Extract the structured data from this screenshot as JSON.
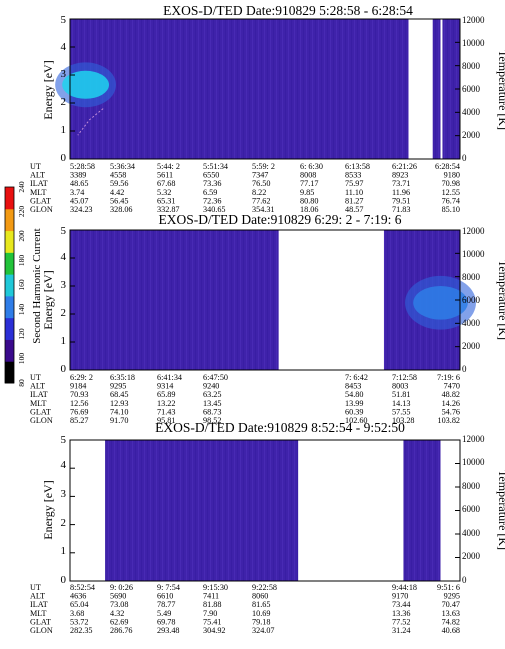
{
  "colorbar": {
    "label": "Second Harmonic Current",
    "ticks": [
      "80",
      "100",
      "120",
      "140",
      "160",
      "180",
      "200",
      "220",
      "240"
    ],
    "colors": [
      "#000000",
      "#3a0a8c",
      "#2b2fd6",
      "#2f7de8",
      "#20c8d8",
      "#22c33a",
      "#e8e81e",
      "#f29a14",
      "#e81010"
    ]
  },
  "chart_data": [
    {
      "type": "heatmap",
      "title": "EXOS-D/TED   Date:910829  5:28:58 - 6:28:54",
      "ylabel": "Energy [eV]",
      "ylabel_right": "Temperature [K]",
      "ylim": [
        0,
        5
      ],
      "yticks": [
        "0",
        "1",
        "2",
        "3",
        "4",
        "5"
      ],
      "ylim_right": [
        0,
        12000
      ],
      "yticks_right": [
        "0",
        "2000",
        "4000",
        "6000",
        "8000",
        "10000",
        "12000"
      ],
      "background_color": "#3f22aa",
      "gaps": [
        [
          0.868,
          0.93
        ],
        [
          0.95,
          0.955
        ]
      ],
      "hot_spots": [
        {
          "x": 0.04,
          "y": 0.47,
          "rx": 0.06,
          "ry": 0.1,
          "color": "#1ed3ee"
        }
      ],
      "arc": {
        "x": [
          0.085,
          0.05,
          0.02
        ],
        "y": [
          0.36,
          0.28,
          0.17
        ]
      },
      "ephemeris": [
        {
          "label": "UT",
          "values": [
            "5:28:58",
            "5:36:34",
            "5:44: 2",
            "5:51:34",
            "5:59: 2",
            "6: 6:30",
            "6:13:58",
            "6:21:26",
            "6:28:54"
          ]
        },
        {
          "label": "ALT",
          "values": [
            "3389",
            "4558",
            "5611",
            "6550",
            "7347",
            "8008",
            "8533",
            "8923",
            "9180"
          ]
        },
        {
          "label": "ILAT",
          "values": [
            "48.65",
            "59.56",
            "67.68",
            "73.36",
            "76.50",
            "77.17",
            "75.97",
            "73.71",
            "70.98"
          ]
        },
        {
          "label": "MLT",
          "values": [
            "3.74",
            "4.42",
            "5.32",
            "6.59",
            "8.22",
            "9.85",
            "11.10",
            "11.96",
            "12.55"
          ]
        },
        {
          "label": "GLAT",
          "values": [
            "45.07",
            "56.45",
            "65.31",
            "72.36",
            "77.62",
            "80.80",
            "81.27",
            "79.51",
            "76.74"
          ]
        },
        {
          "label": "GLON",
          "values": [
            "324.23",
            "328.06",
            "332.87",
            "340.65",
            "354.31",
            "18.06",
            "48.57",
            "71.83",
            "85.10"
          ]
        }
      ]
    },
    {
      "type": "heatmap",
      "title": "EXOS-D/TED   Date:910829  6:29: 2 - 7:19: 6",
      "ylabel": "Energy [eV]",
      "ylabel_right": "Temperature [K]",
      "ylim": [
        0,
        5
      ],
      "yticks": [
        "0",
        "1",
        "2",
        "3",
        "4",
        "5"
      ],
      "ylim_right": [
        0,
        12000
      ],
      "yticks_right": [
        "0",
        "2000",
        "4000",
        "6000",
        "8000",
        "10000",
        "12000"
      ],
      "background_color": "#3f22aa",
      "gaps": [
        [
          0.535,
          0.805
        ]
      ],
      "hot_spots": [
        {
          "x": 0.95,
          "y": 0.52,
          "rx": 0.07,
          "ry": 0.12,
          "color": "#2e7ee6"
        }
      ],
      "ephemeris": [
        {
          "label": "UT",
          "values": [
            "6:29: 2",
            "6:35:18",
            "6:41:34",
            "6:47:50",
            "",
            "",
            "7: 6:42",
            "7:12:58",
            "7:19: 6"
          ]
        },
        {
          "label": "ALT",
          "values": [
            "9184",
            "9295",
            "9314",
            "9240",
            "",
            "",
            "8453",
            "8003",
            "7470"
          ]
        },
        {
          "label": "ILAT",
          "values": [
            "70.93",
            "68.45",
            "65.89",
            "63.25",
            "",
            "",
            "54.80",
            "51.81",
            "48.82"
          ]
        },
        {
          "label": "MLT",
          "values": [
            "12.56",
            "12.93",
            "13.22",
            "13.45",
            "",
            "",
            "13.99",
            "14.13",
            "14.26"
          ]
        },
        {
          "label": "GLAT",
          "values": [
            "76.69",
            "74.10",
            "71.43",
            "68.73",
            "",
            "",
            "60.39",
            "57.55",
            "54.76"
          ]
        },
        {
          "label": "GLON",
          "values": [
            "85.27",
            "91.70",
            "95.81",
            "98.52",
            "",
            "",
            "102.60",
            "103.28",
            "103.82"
          ]
        }
      ]
    },
    {
      "type": "heatmap",
      "title": "EXOS-D/TED   Date:910829  8:52:54 - 9:52:50",
      "ylabel": "Energy [eV]",
      "ylabel_right": "Temperature [K]",
      "ylim": [
        0,
        5
      ],
      "yticks": [
        "0",
        "1",
        "2",
        "3",
        "4",
        "5"
      ],
      "ylim_right": [
        0,
        12000
      ],
      "yticks_right": [
        "0",
        "2000",
        "4000",
        "6000",
        "8000",
        "10000",
        "12000"
      ],
      "background_color": "#3f22aa",
      "gaps": [
        [
          0.0,
          0.09
        ],
        [
          0.585,
          0.855
        ],
        [
          0.95,
          1.0
        ]
      ],
      "hot_spots": [],
      "ephemeris": [
        {
          "label": "UT",
          "values": [
            "8:52:54",
            "9: 0:26",
            "9: 7:54",
            "9:15:30",
            "9:22:58",
            "",
            "",
            "9:44:18",
            "9:51: 6"
          ]
        },
        {
          "label": "ALT",
          "values": [
            "4636",
            "5690",
            "6610",
            "7411",
            "8060",
            "",
            "",
            "9170",
            "9295"
          ]
        },
        {
          "label": "ILAT",
          "values": [
            "65.04",
            "73.08",
            "78.77",
            "81.88",
            "81.65",
            "",
            "",
            "73.44",
            "70.47"
          ]
        },
        {
          "label": "MLT",
          "values": [
            "3.68",
            "4.32",
            "5.49",
            "7.90",
            "10.69",
            "",
            "",
            "13.36",
            "13.63"
          ]
        },
        {
          "label": "GLAT",
          "values": [
            "53.72",
            "62.69",
            "69.78",
            "75.41",
            "79.18",
            "",
            "",
            "77.52",
            "74.82"
          ]
        },
        {
          "label": "GLON",
          "values": [
            "282.35",
            "286.76",
            "293.48",
            "304.92",
            "324.07",
            "",
            "",
            "31.24",
            "40.68"
          ]
        }
      ]
    }
  ]
}
